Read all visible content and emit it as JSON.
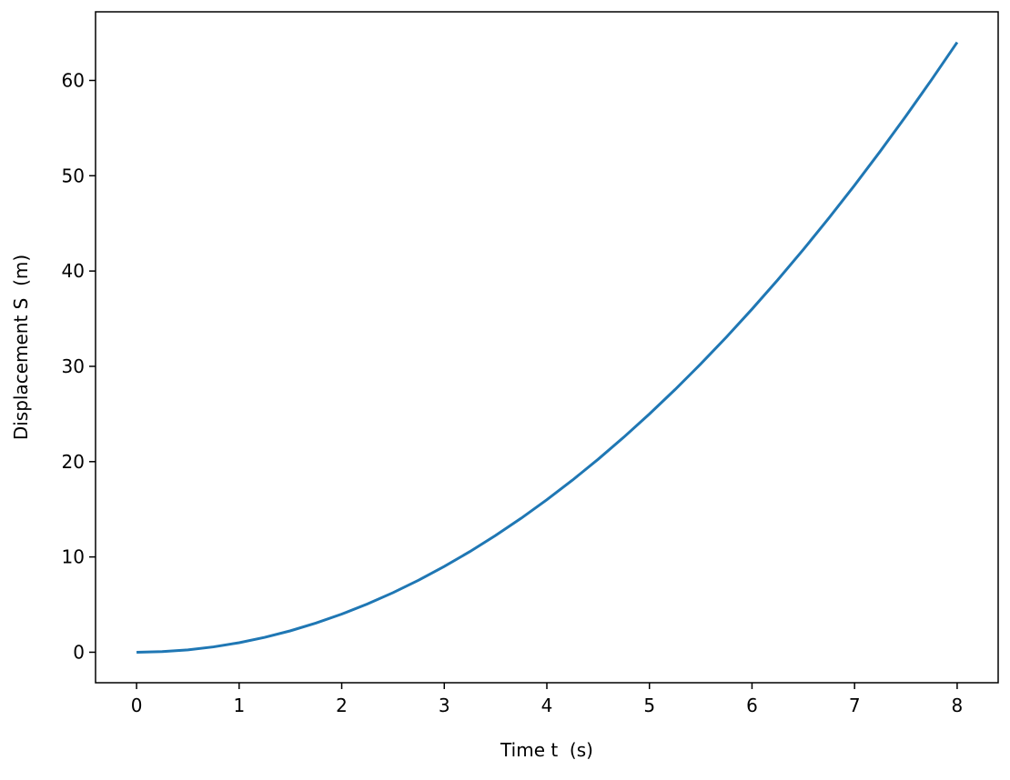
{
  "chart_data": {
    "type": "line",
    "x_label": "Time t  (s)",
    "y_label": "Displacement S  (m)",
    "x": [
      0,
      0.25,
      0.5,
      0.75,
      1,
      1.25,
      1.5,
      1.75,
      2,
      2.25,
      2.5,
      2.75,
      3,
      3.25,
      3.5,
      3.75,
      4,
      4.25,
      4.5,
      4.75,
      5,
      5.25,
      5.5,
      5.75,
      6,
      6.25,
      6.5,
      6.75,
      7,
      7.25,
      7.5,
      7.75,
      8
    ],
    "series": [
      {
        "color": "#1f77b4",
        "values": [
          0,
          0.0625,
          0.25,
          0.5625,
          1,
          1.5625,
          2.25,
          3.0625,
          4,
          5.0625,
          6.25,
          7.5625,
          9,
          10.5625,
          12.25,
          14.0625,
          16,
          18.0625,
          20.25,
          22.5625,
          25,
          27.5625,
          30.25,
          33.0625,
          36,
          39.0625,
          42.25,
          45.5625,
          49,
          52.5625,
          56.25,
          60.0625,
          64
        ]
      }
    ],
    "xlim": [
      -0.4,
      8.4
    ],
    "ylim": [
      -3.2,
      67.2
    ],
    "xticks": [
      0,
      1,
      2,
      3,
      4,
      5,
      6,
      7,
      8
    ],
    "yticks": [
      0,
      10,
      20,
      30,
      40,
      50,
      60
    ],
    "grid": false
  }
}
